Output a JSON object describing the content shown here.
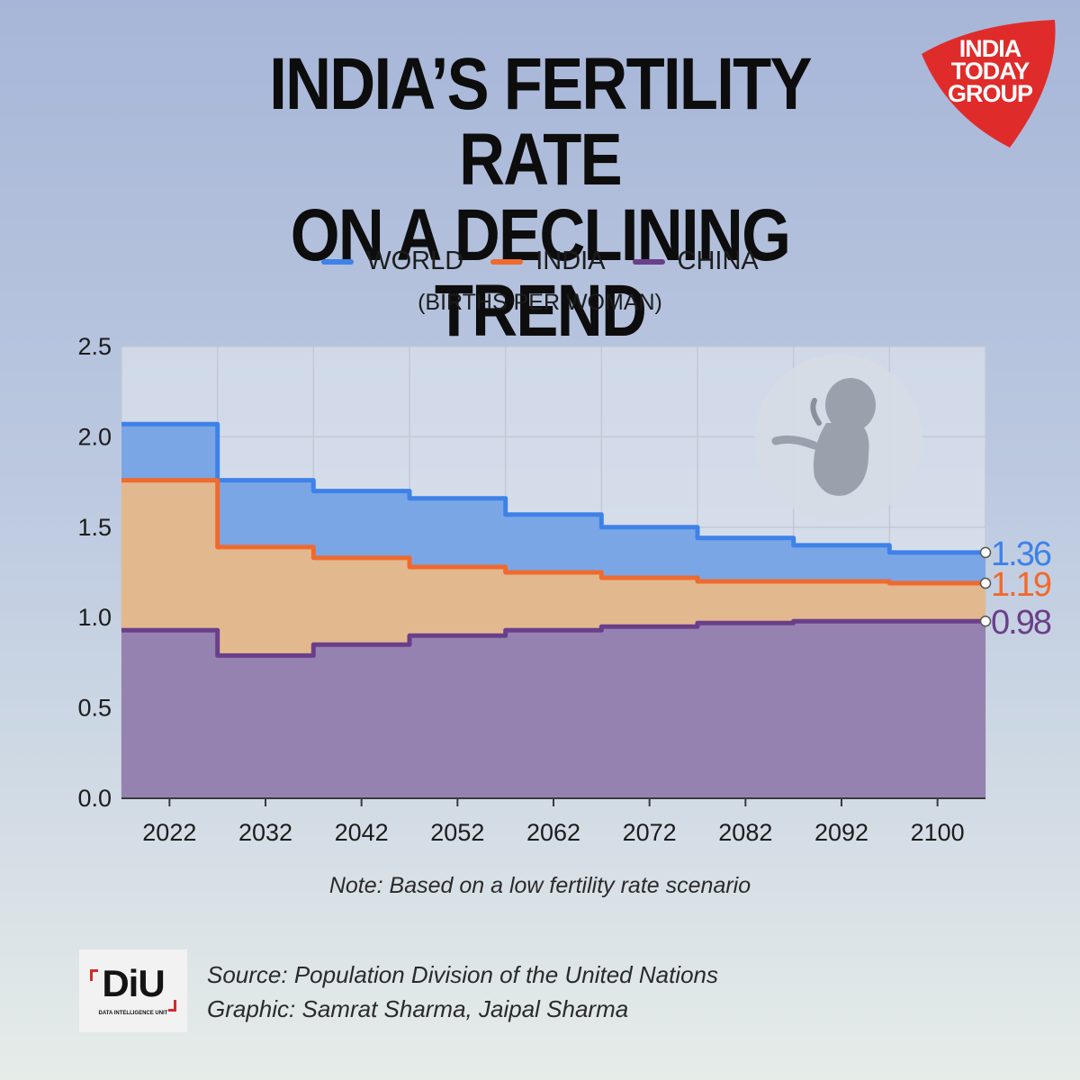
{
  "title": {
    "line1": "INDIA’S FERTILITY RATE",
    "line2": "ON A DECLINING TREND"
  },
  "logo": {
    "line1": "INDIA",
    "line2": "TODAY",
    "line3": "GROUP",
    "color": "#e02b2b"
  },
  "legend": [
    {
      "label": "WORLD",
      "color": "#3e82e8"
    },
    {
      "label": "INDIA",
      "color": "#ef6a2e"
    },
    {
      "label": "CHINA",
      "color": "#6a3f8a"
    }
  ],
  "unit_label": "(BIRTHS PER WOMAN)",
  "note": "Note: Based on a low fertility rate scenario",
  "credits": {
    "source": "Source: Population Division of the United Nations",
    "graphic": "Graphic: Samrat Sharma, Jaipal Sharma"
  },
  "badge": {
    "word": "DiU",
    "sub": "DATA INTELLIGENCE UNIT"
  },
  "chart_data": {
    "type": "area",
    "step": true,
    "stacked_overlay": true,
    "categories": [
      "2022",
      "2032",
      "2042",
      "2052",
      "2062",
      "2072",
      "2082",
      "2092",
      "2100"
    ],
    "yticks": [
      "0.0",
      "0.5",
      "1.0",
      "1.5",
      "2.0",
      "2.5"
    ],
    "ylim": [
      0,
      2.5
    ],
    "grid": true,
    "series": [
      {
        "name": "WORLD",
        "color": "#3e82e8",
        "fill": "#7aa6e6",
        "values": [
          2.07,
          1.76,
          1.7,
          1.66,
          1.57,
          1.5,
          1.44,
          1.4,
          1.36
        ]
      },
      {
        "name": "INDIA",
        "color": "#ef6a2e",
        "fill": "#e2b98e",
        "values": [
          1.76,
          1.39,
          1.33,
          1.28,
          1.25,
          1.22,
          1.2,
          1.2,
          1.19
        ]
      },
      {
        "name": "CHINA",
        "color": "#6a3f8a",
        "fill": "#9682b0",
        "values": [
          0.93,
          0.79,
          0.85,
          0.9,
          0.93,
          0.95,
          0.97,
          0.98,
          0.98
        ]
      }
    ],
    "end_labels": [
      "1.36",
      "1.19",
      "0.98"
    ]
  }
}
